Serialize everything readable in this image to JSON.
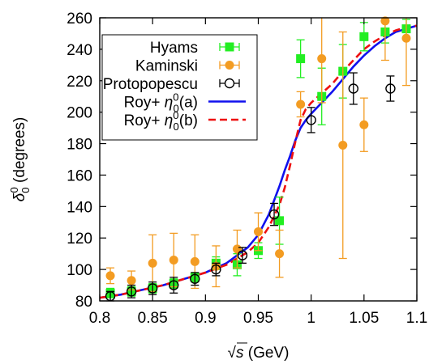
{
  "chart_data": {
    "type": "scatter",
    "xlabel_prefix": "√s",
    "xlabel_unit": "(GeV)",
    "ylabel_symbol": "δ",
    "ylabel_sub": "0",
    "ylabel_sup": "0",
    "ylabel_unit": "(degrees)",
    "xlim": [
      0.8,
      1.1
    ],
    "ylim": [
      80,
      260
    ],
    "xticks": [
      0.8,
      0.85,
      0.9,
      0.95,
      1,
      1.05,
      1.1
    ],
    "xtick_labels": [
      "0.8",
      "0.85",
      "0.9",
      "0.95",
      "1",
      "1.05",
      "1.1"
    ],
    "yticks": [
      80,
      100,
      120,
      140,
      160,
      180,
      200,
      220,
      240,
      260
    ],
    "ytick_labels": [
      "80",
      "100",
      "120",
      "140",
      "160",
      "180",
      "200",
      "220",
      "240",
      "260"
    ],
    "legend_position": "top-left",
    "series": [
      {
        "name": "Hyams",
        "kind": "points",
        "marker": "square",
        "color": "#22ee22",
        "points": [
          {
            "x": 0.81,
            "y": 85,
            "err": 3
          },
          {
            "x": 0.83,
            "y": 86,
            "err": 3
          },
          {
            "x": 0.85,
            "y": 88,
            "err": 3
          },
          {
            "x": 0.87,
            "y": 91,
            "err": 3
          },
          {
            "x": 0.89,
            "y": 95,
            "err": 3
          },
          {
            "x": 0.91,
            "y": 104,
            "err": 4
          },
          {
            "x": 0.93,
            "y": 103,
            "err": 7
          },
          {
            "x": 0.95,
            "y": 112,
            "err": 5
          },
          {
            "x": 0.97,
            "y": 131,
            "err": 15
          },
          {
            "x": 0.99,
            "y": 234,
            "err": 12
          },
          {
            "x": 1.01,
            "y": 210,
            "err": 18
          },
          {
            "x": 1.03,
            "y": 226,
            "err": 17
          },
          {
            "x": 1.05,
            "y": 248,
            "err": 9
          },
          {
            "x": 1.07,
            "y": 251,
            "err": 7
          },
          {
            "x": 1.09,
            "y": 253,
            "err": 6
          }
        ]
      },
      {
        "name": "Kaminski",
        "kind": "points",
        "marker": "circle",
        "color": "#f39c22",
        "points": [
          {
            "x": 0.81,
            "y": 96,
            "err": 5
          },
          {
            "x": 0.83,
            "y": 93,
            "err": 6
          },
          {
            "x": 0.85,
            "y": 104,
            "err": 18
          },
          {
            "x": 0.87,
            "y": 106,
            "err": 17
          },
          {
            "x": 0.89,
            "y": 105,
            "err": 17
          },
          {
            "x": 0.91,
            "y": 102,
            "err": 13
          },
          {
            "x": 0.93,
            "y": 113,
            "err": 12
          },
          {
            "x": 0.95,
            "y": 124,
            "err": 12
          },
          {
            "x": 0.97,
            "y": 110,
            "err": 15
          },
          {
            "x": 0.99,
            "y": 205,
            "err": 8
          },
          {
            "x": 1.01,
            "y": 234,
            "err": 28
          },
          {
            "x": 1.03,
            "y": 179,
            "err": 72
          },
          {
            "x": 1.05,
            "y": 192,
            "err": 17
          },
          {
            "x": 1.07,
            "y": 258,
            "err": 25
          },
          {
            "x": 1.09,
            "y": 247,
            "err": 30
          }
        ]
      },
      {
        "name": "Protopopescu",
        "kind": "points",
        "marker": "open-circle",
        "color": "#000000",
        "points": [
          {
            "x": 0.81,
            "y": 83,
            "err": 3
          },
          {
            "x": 0.83,
            "y": 86,
            "err": 4
          },
          {
            "x": 0.85,
            "y": 88,
            "err": 4
          },
          {
            "x": 0.87,
            "y": 90,
            "err": 5
          },
          {
            "x": 0.89,
            "y": 94,
            "err": 4
          },
          {
            "x": 0.91,
            "y": 100,
            "err": 4
          },
          {
            "x": 0.935,
            "y": 109,
            "err": 5
          },
          {
            "x": 0.965,
            "y": 135,
            "err": 7
          },
          {
            "x": 1.0,
            "y": 195,
            "err": 8
          },
          {
            "x": 1.04,
            "y": 215,
            "err": 10
          },
          {
            "x": 1.075,
            "y": 215,
            "err": 8
          }
        ]
      },
      {
        "name_base": "Roy+ ",
        "name_math": "η",
        "name_sub": "0",
        "name_sup": "0",
        "name_tail": "(a)",
        "kind": "line",
        "style": "solid",
        "color": "#1010ee",
        "x": [
          0.8,
          0.82,
          0.84,
          0.86,
          0.88,
          0.9,
          0.92,
          0.94,
          0.95,
          0.96,
          0.97,
          0.975,
          0.98,
          0.985,
          0.99,
          0.995,
          1.0,
          1.01,
          1.02,
          1.03,
          1.04,
          1.05,
          1.06,
          1.07,
          1.08,
          1.09,
          1.1
        ],
        "y": [
          82,
          84,
          87,
          90,
          94,
          98,
          104,
          114,
          122,
          135,
          153,
          163,
          172,
          182,
          190,
          195,
          199,
          206,
          213,
          221,
          229,
          236,
          242,
          247,
          251,
          253,
          255
        ]
      },
      {
        "name_base": "Roy+ ",
        "name_math": "η",
        "name_sub": "0",
        "name_sup": "0",
        "name_tail": "(b)",
        "kind": "line",
        "style": "dashed",
        "color": "#ee1010",
        "x": [
          0.8,
          0.82,
          0.84,
          0.86,
          0.88,
          0.9,
          0.92,
          0.94,
          0.95,
          0.96,
          0.97,
          0.975,
          0.98,
          0.985,
          0.99,
          0.995,
          1.0,
          1.01,
          1.02,
          1.03,
          1.04,
          1.05,
          1.06,
          1.07,
          1.08,
          1.09,
          1.1
        ],
        "y": [
          82,
          84,
          87,
          90,
          94,
          98,
          103,
          111,
          117,
          127,
          141,
          152,
          166,
          181,
          195,
          202,
          206,
          212,
          218,
          226,
          233,
          240,
          245,
          249,
          252,
          254,
          255
        ]
      }
    ]
  }
}
